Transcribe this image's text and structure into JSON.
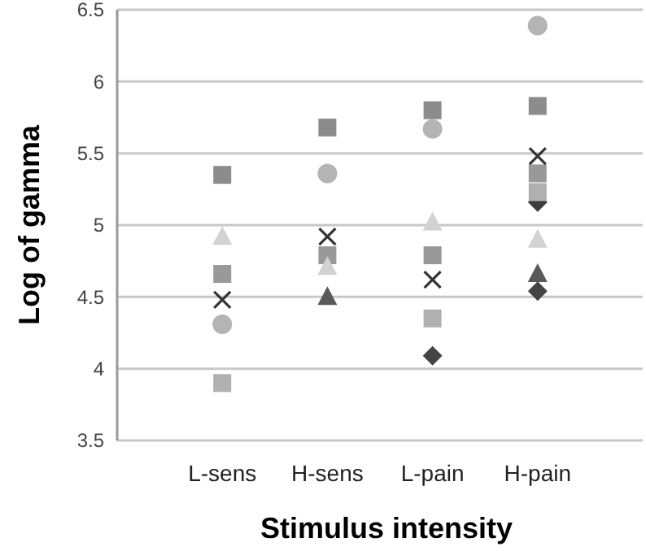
{
  "chart_data": {
    "type": "scatter",
    "xlabel": "Stimulus intensity",
    "ylabel": "Log of gamma",
    "categories": [
      "L-sens",
      "H-sens",
      "L-pain",
      "H-pain"
    ],
    "ylim": [
      3.5,
      6.5
    ],
    "yticks": [
      3.5,
      4,
      4.5,
      5,
      5.5,
      6,
      6.5
    ],
    "grid": "y",
    "series": [
      {
        "color": "#8c8c8c",
        "marker": "square",
        "values": [
          5.35,
          5.68,
          5.8,
          5.83
        ]
      },
      {
        "color": "#999999",
        "marker": "square",
        "values": [
          4.66,
          4.79,
          4.79,
          5.36
        ]
      },
      {
        "color": "#b4b4b4",
        "marker": "circle",
        "values": [
          4.31,
          5.36,
          5.67,
          6.39
        ]
      },
      {
        "color": "#d2d2d2",
        "marker": "triangle",
        "values": [
          4.92,
          4.71,
          5.02,
          4.9
        ]
      },
      {
        "color": "#5a5a5a",
        "marker": "triangle",
        "values": [
          null,
          4.5,
          null,
          4.66
        ]
      },
      {
        "color": "#333333",
        "marker": "cross",
        "values": [
          4.48,
          4.92,
          4.62,
          5.48
        ]
      },
      {
        "color": "#444444",
        "marker": "diamond",
        "values": [
          null,
          null,
          4.09,
          4.54
        ]
      },
      {
        "color": "#3c3c3c",
        "marker": "diamond",
        "values": [
          null,
          null,
          null,
          5.16
        ]
      },
      {
        "color": "#b0b0b0",
        "marker": "square",
        "values": [
          3.9,
          null,
          4.35,
          5.23
        ]
      }
    ]
  }
}
